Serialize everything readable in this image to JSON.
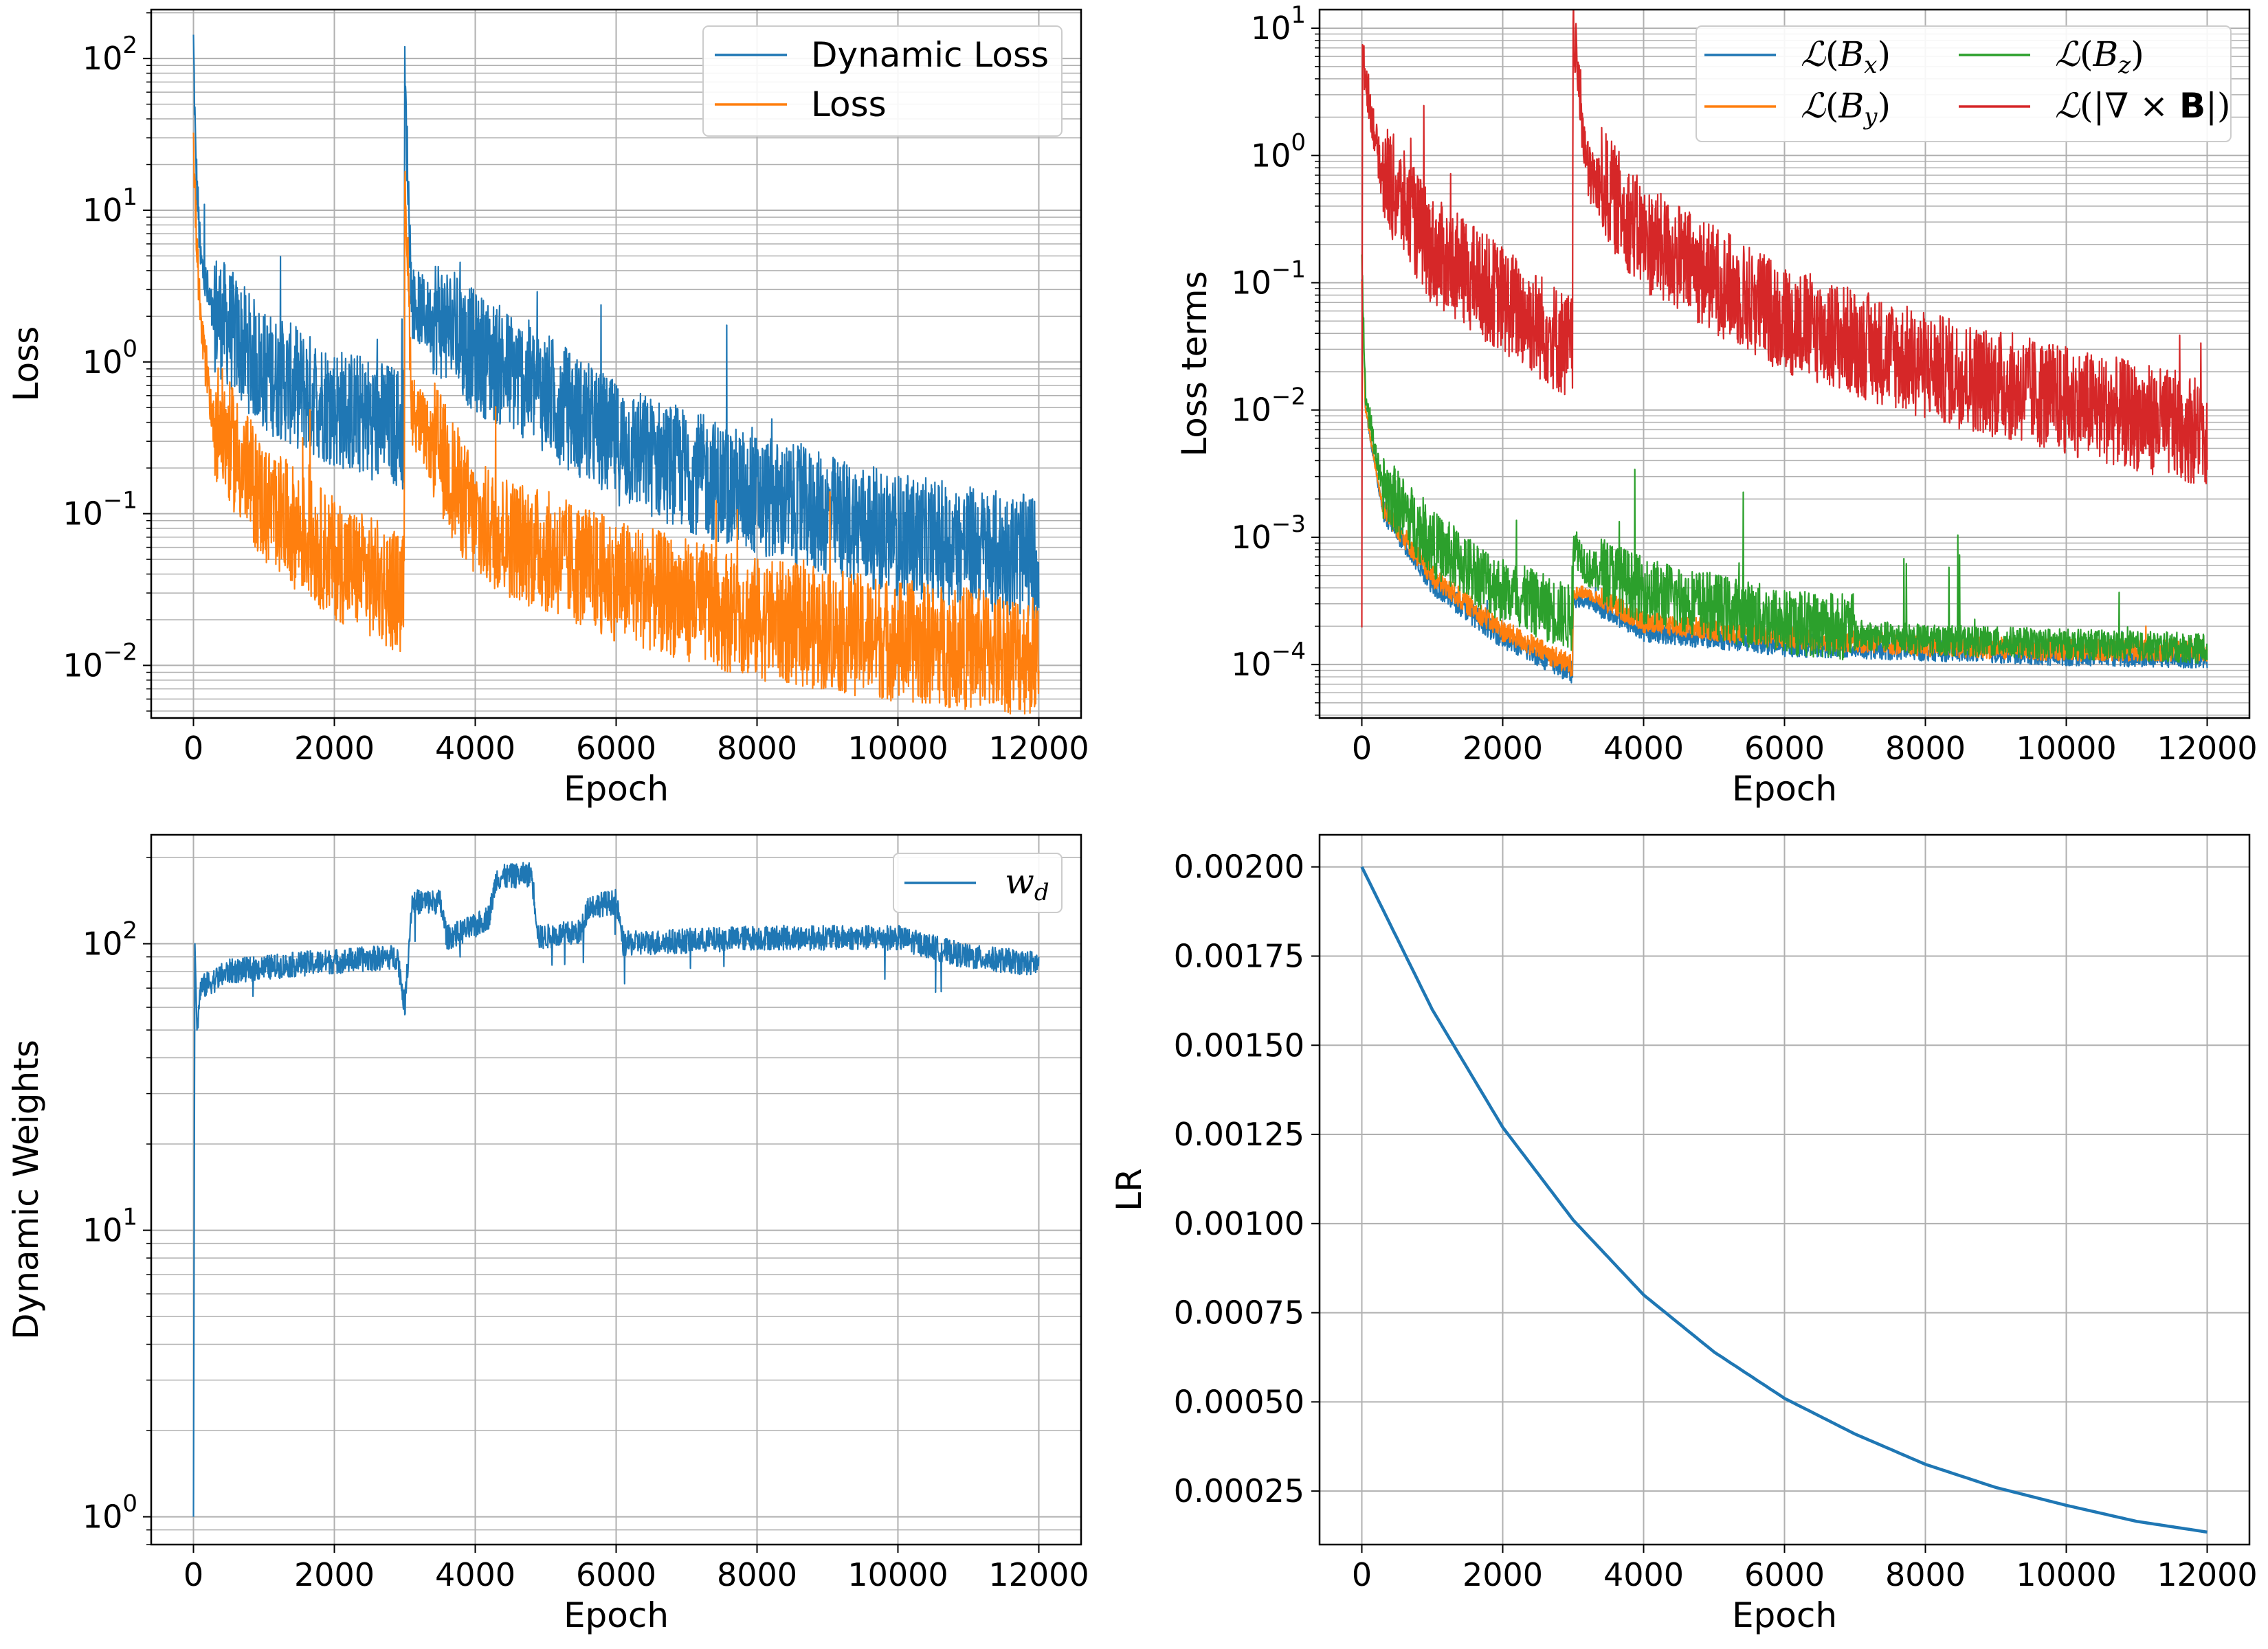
{
  "chart_data": [
    {
      "type": "line",
      "xlabel": "Epoch",
      "ylabel": "Loss",
      "xlim": [
        -600,
        12600
      ],
      "ylim": [
        0.0045,
        210
      ],
      "yscale": "log",
      "grid": true,
      "legend": "top-right",
      "xticks": [
        "0",
        "2000",
        "4000",
        "6000",
        "8000",
        "10000",
        "12000"
      ],
      "yticks": [
        {
          "base": "10",
          "exp": "−2",
          "value": 0.01
        },
        {
          "base": "10",
          "exp": "−1",
          "value": 0.1
        },
        {
          "base": "10",
          "exp": "0",
          "value": 1
        },
        {
          "base": "10",
          "exp": "1",
          "value": 10
        },
        {
          "base": "10",
          "exp": "2",
          "value": 100
        }
      ],
      "series": [
        {
          "name": "Dynamic Loss",
          "color": "#1f77b4",
          "x": [
            0,
            30,
            100,
            300,
            1000,
            2000,
            2990,
            3000,
            3100,
            4000,
            4800,
            6000,
            8000,
            10000,
            12000
          ],
          "y": [
            110,
            20,
            4.0,
            1.5,
            0.6,
            0.35,
            0.25,
            58,
            2.0,
            0.8,
            0.5,
            0.2,
            0.09,
            0.05,
            0.035
          ]
        },
        {
          "name": "Loss",
          "color": "#ff7f0e",
          "x": [
            0,
            30,
            100,
            300,
            1000,
            2000,
            2990,
            3000,
            3100,
            4000,
            6000,
            8000,
            10000,
            12000
          ],
          "y": [
            25,
            8,
            1.5,
            0.3,
            0.08,
            0.035,
            0.02,
            17,
            0.4,
            0.06,
            0.025,
            0.014,
            0.01,
            0.008
          ]
        }
      ]
    },
    {
      "type": "line",
      "xlabel": "Epoch",
      "ylabel": "Loss terms",
      "xlim": [
        -600,
        12600
      ],
      "ylim": [
        3.8e-05,
        14
      ],
      "yscale": "log",
      "grid": true,
      "legend": "top-right",
      "xticks": [
        "0",
        "2000",
        "4000",
        "6000",
        "8000",
        "10000",
        "12000"
      ],
      "yticks": [
        {
          "base": "10",
          "exp": "−4",
          "value": 0.0001
        },
        {
          "base": "10",
          "exp": "−3",
          "value": 0.001
        },
        {
          "base": "10",
          "exp": "−2",
          "value": 0.01
        },
        {
          "base": "10",
          "exp": "−1",
          "value": 0.1
        },
        {
          "base": "10",
          "exp": "0",
          "value": 1
        },
        {
          "base": "10",
          "exp": "1",
          "value": 10
        }
      ],
      "series": [
        {
          "name": "ℒ(B_x)",
          "color": "#1f77b4",
          "x": [
            0,
            50,
            300,
            1000,
            2000,
            2990,
            3000,
            3200,
            4000,
            6000,
            8000,
            10000,
            12000
          ],
          "y": [
            0.1,
            0.01,
            0.0015,
            0.0004,
            0.00015,
            8e-05,
            0.0003,
            0.0003,
            0.00017,
            0.00013,
            0.00012,
            0.00011,
            0.000105
          ]
        },
        {
          "name": "ℒ(B_y)",
          "color": "#ff7f0e",
          "x": [
            0,
            50,
            300,
            1000,
            2000,
            2990,
            3000,
            3200,
            4000,
            6000,
            8000,
            10000,
            12000
          ],
          "y": [
            0.1,
            0.01,
            0.0016,
            0.00045,
            0.00017,
            9e-05,
            0.00035,
            0.00035,
            0.0002,
            0.00015,
            0.00013,
            0.00012,
            0.00012
          ]
        },
        {
          "name": "ℒ(B_z)",
          "color": "#2ca02c",
          "x": [
            0,
            50,
            300,
            1000,
            2000,
            2990,
            3000,
            3200,
            4000,
            6000,
            8000,
            10000,
            12000
          ],
          "y": [
            0.15,
            0.012,
            0.002,
            0.0007,
            0.0003,
            0.00018,
            0.0008,
            0.0005,
            0.0003,
            0.00017,
            0.00014,
            0.00013,
            0.00012
          ]
        },
        {
          "name": "ℒ(|∇ × B|)",
          "color": "#d62728",
          "x": [
            0,
            10,
            300,
            1000,
            2000,
            2990,
            3000,
            3200,
            4000,
            6000,
            8000,
            10000,
            12000
          ],
          "y": [
            0.00015,
            5.0,
            0.5,
            0.12,
            0.05,
            0.02,
            8.0,
            0.6,
            0.15,
            0.035,
            0.015,
            0.008,
            0.0045
          ]
        }
      ]
    },
    {
      "type": "line",
      "xlabel": "Epoch",
      "ylabel": "Dynamic Weights",
      "xlim": [
        -600,
        12600
      ],
      "ylim": [
        0.8,
        240
      ],
      "yscale": "log",
      "grid": true,
      "legend": "top-right",
      "xticks": [
        "0",
        "2000",
        "4000",
        "6000",
        "8000",
        "10000",
        "12000"
      ],
      "yticks": [
        {
          "base": "10",
          "exp": "0",
          "value": 1
        },
        {
          "base": "10",
          "exp": "1",
          "value": 10
        },
        {
          "base": "10",
          "exp": "2",
          "value": 100
        }
      ],
      "series": [
        {
          "name": "w_d",
          "color": "#1f77b4",
          "x": [
            0,
            20,
            50,
            100,
            500,
            1500,
            2900,
            3000,
            3100,
            3500,
            3600,
            4000,
            4200,
            4300,
            4800,
            4900,
            5500,
            5600,
            6000,
            6100,
            8000,
            10000,
            11000,
            12000
          ],
          "y": [
            1.0,
            100,
            50,
            70,
            80,
            85,
            90,
            60,
            140,
            140,
            105,
            115,
            125,
            170,
            175,
            105,
            110,
            135,
            140,
            100,
            105,
            105,
            90,
            85
          ]
        }
      ]
    },
    {
      "type": "line",
      "xlabel": "Epoch",
      "ylabel": "LR",
      "xlim": [
        -600,
        12600
      ],
      "ylim": [
        0.0001,
        0.00209
      ],
      "yscale": "linear",
      "grid": true,
      "legend": "none",
      "xticks": [
        "0",
        "2000",
        "4000",
        "6000",
        "8000",
        "10000",
        "12000"
      ],
      "yticks": [
        "0.00025",
        "0.00050",
        "0.00075",
        "0.00100",
        "0.00125",
        "0.00150",
        "0.00175",
        "0.00200"
      ],
      "series": [
        {
          "color": "#1f77b4",
          "x": [
            0,
            1000,
            2000,
            3000,
            4000,
            5000,
            6000,
            7000,
            8000,
            9000,
            10000,
            11000,
            12000
          ],
          "y": [
            0.002,
            0.0016,
            0.00127,
            0.00101,
            0.0008,
            0.00064,
            0.00051,
            0.00041,
            0.000325,
            0.00026,
            0.00021,
            0.000165,
            0.000135
          ]
        }
      ]
    }
  ]
}
